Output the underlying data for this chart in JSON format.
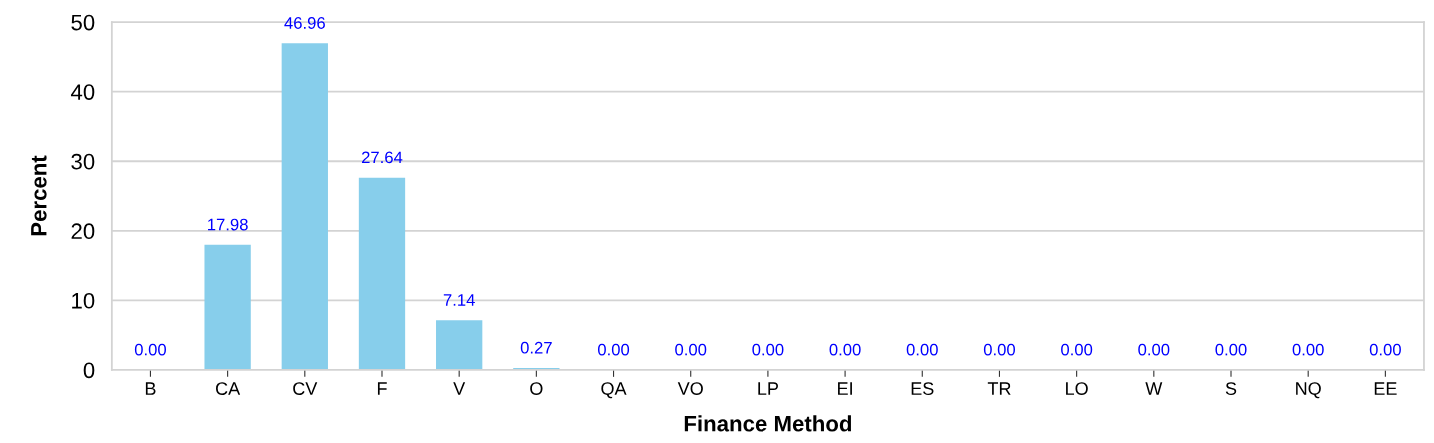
{
  "chart_data": {
    "type": "bar",
    "xlabel": "Finance Method",
    "ylabel": "Percent",
    "categories": [
      "B",
      "CA",
      "CV",
      "F",
      "V",
      "O",
      "QA",
      "VO",
      "LP",
      "EI",
      "ES",
      "TR",
      "LO",
      "W",
      "S",
      "NQ",
      "EE"
    ],
    "values": [
      0,
      17.98,
      46.96,
      27.64,
      7.14,
      0.27,
      0,
      0,
      0,
      0,
      0,
      0,
      0,
      0,
      0,
      0,
      0
    ],
    "value_labels": [
      "0.00",
      "17.98",
      "46.96",
      "27.64",
      "7.14",
      "0.27",
      "0.00",
      "0.00",
      "0.00",
      "0.00",
      "0.00",
      "0.00",
      "0.00",
      "0.00",
      "0.00",
      "0.00",
      "0.00"
    ],
    "color": "#87ceeb",
    "ylim": [
      0,
      50
    ],
    "yticks": [
      0,
      10,
      20,
      30,
      40,
      50
    ],
    "grid": "y",
    "legend": false
  }
}
